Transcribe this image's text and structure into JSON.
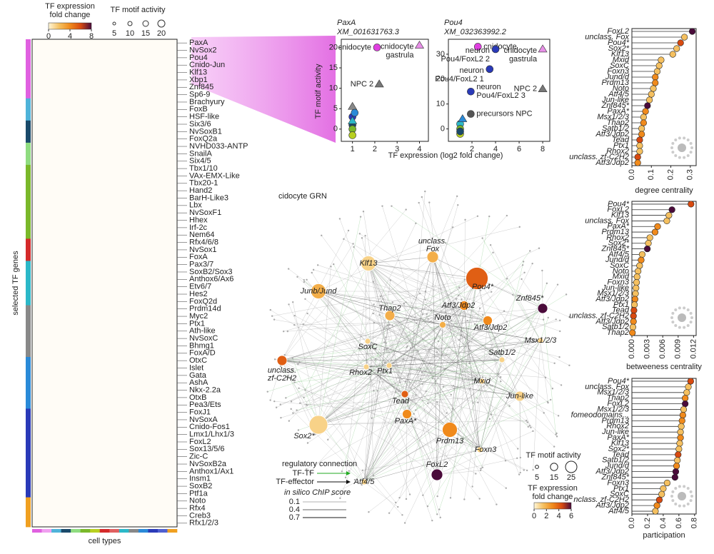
{
  "chart_data": [
    {
      "type": "heatmap",
      "ylabel": "selected TF genes",
      "xlabel": "cell types",
      "colorbar": {
        "title_lines": [
          "TF expression",
          "fold change"
        ],
        "lim": [
          0,
          8
        ],
        "ticks": [
          0,
          4,
          8
        ]
      },
      "size_legend": {
        "title": "TF motif activity",
        "ticks": [
          5,
          10,
          15,
          20
        ]
      },
      "colormap": [
        "#fff6d8",
        "#f5c060",
        "#f08a1c",
        "#d84a10",
        "#4a0b3a"
      ],
      "groups": [
        {
          "color": "#e060e0",
          "genes": [
            "PaxA",
            "NvSox2",
            "Pou4",
            "Cnido-Jun",
            "Klf13",
            "Xbp1",
            "Znf845",
            "Sp6-9"
          ]
        },
        {
          "color": "#4fb3d9",
          "genes": [
            "Brachyury",
            "FoxB",
            "HSF-like"
          ]
        },
        {
          "color": "#1a4a6a",
          "genes": [
            "Six3/6",
            "NvSoxB1",
            "FoxQ2a"
          ]
        },
        {
          "color": "#8fdc80",
          "genes": [
            "NVHD033-ANTP",
            "SnailA",
            "Six4/5"
          ]
        },
        {
          "color": "#7ab82a",
          "genes": [
            "Tbx1/10",
            "VAx-EMX-Like",
            "Tbx20-1",
            "Hand2",
            "BarH-Like3",
            "Lbx",
            "NvSoxF1",
            "Hhex",
            "Irf-2c",
            "Nem64"
          ]
        },
        {
          "color": "#d42a2a",
          "genes": [
            "Rfx4/6/8",
            "NvSox1",
            "FoxA"
          ]
        },
        {
          "color": "#2bb8c8",
          "genes": [
            "Pax3/7",
            "SoxB2/Sox3",
            "Anthox6/Ax6",
            "Etv6/7",
            "Hes2",
            "FoxQ2d"
          ]
        },
        {
          "color": "#888888",
          "genes": [
            "Prdm14d",
            "Myc2",
            "Ptx1",
            "Ath-like",
            "NvSoxC",
            "Bhmg1",
            "FoxA/D"
          ]
        },
        {
          "color": "#2a8ad8",
          "genes": [
            "OtxC",
            "Islet",
            "Gata",
            "AshA",
            "Nkx-2.2a",
            "OtxB",
            "Pea3/Ets"
          ]
        },
        {
          "color": "#2a3ab8",
          "genes": [
            "FoxJ1",
            "NvSoxA",
            "Cnido-Fos1",
            "Lmx1/Lhx1/3",
            "FoxL2",
            "Sox13/5/6",
            "Zic-C",
            "NvSoxB2a",
            "Anthox1/Ax1",
            "Insm1",
            "SoxB2",
            "Ptf1a"
          ]
        },
        {
          "color": "#f0a020",
          "genes": [
            "Noto",
            "Rfx4",
            "Creb3",
            "Rfx1/2/3"
          ]
        }
      ],
      "cell_type_colors": [
        "#e060e0",
        "#f0a0f0",
        "#4fb3d9",
        "#1a4a6a",
        "#8fdc80",
        "#7ab82a",
        "#b8d020",
        "#d42a2a",
        "#e06060",
        "#2bb8c8",
        "#888888",
        "#2a8ad8",
        "#2a3ab8",
        "#5060d0",
        "#f0a020"
      ]
    },
    {
      "type": "scatter",
      "title": "PaxA",
      "subtitle": "XM_001631763.3",
      "ylabel": "TF motif activity",
      "xlabel": "TF expression (log2 fold change)",
      "x": [
        1,
        1,
        1,
        1,
        1,
        1,
        1.1,
        2.1,
        4,
        2.2
      ],
      "values": [
        5.5,
        3,
        1,
        0,
        -1.5,
        2,
        4,
        20,
        20.5,
        11
      ],
      "labels": [
        null,
        null,
        null,
        null,
        null,
        null,
        null,
        [
          "cnidocyte"
        ],
        [
          "cnidocyte",
          "gastrula"
        ],
        [
          "NPC 2"
        ]
      ],
      "colors": [
        "#888888",
        "#2a3ab8",
        "#1a4a6a",
        "#7ab82a",
        "#b8d020",
        "#2bb8c8",
        "#2a8ad8",
        "#e040e0",
        "#e890e8",
        "#777777"
      ],
      "markers": [
        "triangle",
        "circle",
        "circle",
        "circle",
        "circle",
        "triangle",
        "circle",
        "circle",
        "triangle",
        "triangle"
      ],
      "xlim": [
        0.5,
        4.4
      ],
      "ylim": [
        -3,
        22
      ],
      "xticks": [
        1,
        2,
        3,
        4
      ],
      "yticks": [
        0,
        5,
        10,
        15,
        20
      ]
    },
    {
      "type": "scatter",
      "title": "Pou4",
      "subtitle": "XM_032363992.2",
      "x": [
        1,
        1,
        1,
        1.2,
        1,
        2.5,
        8,
        4,
        3.5,
        1.9,
        8,
        1.9
      ],
      "values": [
        2,
        0,
        -2,
        4,
        -1,
        33,
        32,
        32,
        24,
        15,
        16,
        6
      ],
      "labels": [
        null,
        null,
        null,
        null,
        null,
        [
          "cnidocyte"
        ],
        [
          "cnidocyte",
          "gastrula"
        ],
        [
          "neuron",
          "Pou4/FoxL2 2"
        ],
        [
          "neuron",
          "Pou4/FoxL2 1"
        ],
        [
          "neuron",
          "Pou4/FoxL2 3"
        ],
        [
          "NPC 2"
        ],
        [
          "precursors NPC"
        ]
      ],
      "colors": [
        "#2bb8c8",
        "#7ab82a",
        "#b8d020",
        "#2a8ad8",
        "#1a4a6a",
        "#e040e0",
        "#e890e8",
        "#2a3ab8",
        "#2a3ab8",
        "#2a3ab8",
        "#777777",
        "#555555"
      ],
      "markers": [
        "circle",
        "circle",
        "circle",
        "triangle",
        "circle",
        "circle",
        "triangle",
        "circle",
        "circle",
        "circle",
        "triangle",
        "circle"
      ],
      "xlim": [
        0,
        8.6
      ],
      "ylim": [
        -5,
        36
      ],
      "xticks": [
        2,
        4,
        6,
        8
      ],
      "yticks": [
        0,
        10,
        20,
        30
      ]
    },
    {
      "type": "network",
      "title": "cidocyte GRN",
      "nodes": [
        {
          "label": [
            "Pou4*"
          ],
          "activity": 25,
          "expression": 4
        },
        {
          "label": [
            "unclass.",
            "Fox"
          ],
          "activity": 10,
          "expression": 2
        },
        {
          "label": [
            "Klf13"
          ],
          "activity": 15,
          "expression": 1
        },
        {
          "label": [
            "Junb/Jund"
          ],
          "activity": 15,
          "expression": 2
        },
        {
          "label": [
            "Atf3/Jdp2"
          ],
          "activity": 7,
          "expression": 3
        },
        {
          "label": [
            "Atf3/Jdp2"
          ],
          "activity": 7,
          "expression": 3
        },
        {
          "label": [
            "Znf845*"
          ],
          "activity": 8,
          "expression": 6
        },
        {
          "label": [
            "Thap2"
          ],
          "activity": 8,
          "expression": 2
        },
        {
          "label": [
            "Noto"
          ],
          "activity": 3,
          "expression": 2
        },
        {
          "label": [
            "SoxC"
          ],
          "activity": 2,
          "expression": 1
        },
        {
          "label": [
            "Msx1/2/3"
          ],
          "activity": 2,
          "expression": 1
        },
        {
          "label": [
            "unclass.",
            "zf-C2H2"
          ],
          "activity": 8,
          "expression": 4
        },
        {
          "label": [
            "Rhox2"
          ],
          "activity": 2,
          "expression": 1
        },
        {
          "label": [
            "Ptx1"
          ],
          "activity": 2,
          "expression": 1
        },
        {
          "label": [
            "Satb1/2"
          ],
          "activity": 2,
          "expression": 1
        },
        {
          "label": [
            "Mxid"
          ],
          "activity": 2,
          "expression": 1
        },
        {
          "label": [
            "Tead"
          ],
          "activity": 4,
          "expression": 4
        },
        {
          "label": [
            "Jun-like"
          ],
          "activity": 8,
          "expression": 1
        },
        {
          "label": [
            "PaxA*"
          ],
          "activity": 7,
          "expression": 3
        },
        {
          "label": [
            "Sox2*"
          ],
          "activity": 20,
          "expression": 1
        },
        {
          "label": [
            "Prdm13"
          ],
          "activity": 15,
          "expression": 3
        },
        {
          "label": [
            "Foxn3"
          ],
          "activity": 2,
          "expression": 1
        },
        {
          "label": [
            "FoxL2"
          ],
          "activity": 10,
          "expression": 6
        },
        {
          "label": [
            "Atf4/5"
          ],
          "activity": 2,
          "expression": 1
        }
      ],
      "colormap": [
        "#fff6d8",
        "#f5c060",
        "#f08a1c",
        "#d84a10",
        "#4a0b3a"
      ],
      "size_legend": {
        "title": "TF motif activity",
        "ticks": [
          5,
          15,
          25
        ]
      },
      "colorbar": {
        "title_lines": [
          "TF expression",
          "fold change"
        ],
        "lim": [
          0,
          6
        ],
        "ticks": [
          0,
          2,
          4,
          6
        ]
      },
      "connection_title": "regulatory connection",
      "edge_types": [
        {
          "name": "TF-TF",
          "color": "#22aa22"
        },
        {
          "name": "TF-effector",
          "color": "#111111"
        }
      ],
      "chip_title": "in silico ChIP score",
      "chip_ticks": [
        0.1,
        0.4,
        0.7
      ]
    },
    {
      "type": "lollipop",
      "xlabel": "degree centrality",
      "categories": [
        "FoxL2",
        "unclass. Fox",
        "Pou4*",
        "Sox2*",
        "Klf13",
        "Mxid",
        "SoxC",
        "Foxn3",
        "Jund/d",
        "Prdm13",
        "Noto",
        "Atf4/5",
        "Jun-like",
        "Znf845*",
        "PaxA*",
        "Msx1/2/3",
        "Thap2",
        "Satb1/2",
        "Atf3/Jdp2",
        "Tead",
        "Ptx1",
        "Rhox2",
        "unclass. zf-C2H2",
        "Atf3/Jdp2"
      ],
      "values": [
        0.31,
        0.27,
        0.25,
        0.23,
        0.21,
        0.15,
        0.14,
        0.13,
        0.12,
        0.12,
        0.11,
        0.1,
        0.09,
        0.08,
        0.07,
        0.06,
        0.06,
        0.05,
        0.05,
        0.04,
        0.04,
        0.04,
        0.03,
        0.03
      ],
      "colors": [
        "#4a0b3a",
        "#f5c060",
        "#d84a10",
        "#f5c060",
        "#f5c060",
        "#f5c060",
        "#f5c060",
        "#f5c060",
        "#f08a1c",
        "#f08a1c",
        "#f5c060",
        "#f5c060",
        "#f5c060",
        "#4a0b3a",
        "#f08a1c",
        "#f5c060",
        "#f08a1c",
        "#f5c060",
        "#f08a1c",
        "#d84a10",
        "#f5c060",
        "#f5c060",
        "#d84a10",
        "#f08a1c"
      ],
      "xlim": [
        0,
        0.33
      ],
      "xticks": [
        {
          "value": 0,
          "label": "0.0"
        },
        0.1,
        0.2,
        0.3
      ]
    },
    {
      "type": "lollipop",
      "xlabel": "betweeness centrality",
      "categories": [
        "Pou4*",
        "FoxL2",
        "Klf13",
        "unclass. Fox",
        "PaxA*",
        "Prdm13",
        "Rhox2",
        "Sox2*",
        "Znf845*",
        "Atf4/5",
        "Jund/d",
        "SoxC",
        "Noto",
        "Mxid",
        "Foxn3",
        "Jun-like",
        "Msx1/2/3",
        "Atf3/Jdp2",
        "Ptx1",
        "Tead",
        "unclass. zf-C2H2",
        "Atf3/Jdp2",
        "Satb1/2",
        "Thap2"
      ],
      "values": [
        0.0115,
        0.0078,
        0.0072,
        0.0068,
        0.005,
        0.0045,
        0.0035,
        0.0032,
        0.003,
        0.002,
        0.0018,
        0.0015,
        0.0012,
        0.001,
        0.0009,
        0.0008,
        0.0007,
        0.0006,
        0.0005,
        0.0004,
        0.0003,
        0.0003,
        0.0002,
        0.0001
      ],
      "colors": [
        "#d84a10",
        "#4a0b3a",
        "#f5c060",
        "#f5c060",
        "#f08a1c",
        "#f08a1c",
        "#f5c060",
        "#f5c060",
        "#4a0b3a",
        "#f5c060",
        "#f08a1c",
        "#f5c060",
        "#f5c060",
        "#f5c060",
        "#f5c060",
        "#f5c060",
        "#f5c060",
        "#f08a1c",
        "#f5c060",
        "#d84a10",
        "#d84a10",
        "#f08a1c",
        "#f5c060",
        "#f08a1c"
      ],
      "xlim": [
        0,
        0.0125
      ],
      "xticks": [
        {
          "value": 0,
          "label": "0.000"
        },
        0.003,
        0.006,
        0.009,
        0.012
      ]
    },
    {
      "type": "lollipop",
      "xlabel": "participation",
      "categories": [
        "Pou4*",
        "unclass. Fox",
        "Msx1/2/3",
        "Thap2",
        "FoxL2",
        "Msx1/2/3",
        "fomeodomains...",
        "Prdm13",
        "Rhox2",
        "Jun-like",
        "PaxA*",
        "Klf13",
        "Sox2*",
        "Tead",
        "Satb1/2",
        "Jund/d",
        "Atf3/Jdp2",
        "Znf845*",
        "Foxn3",
        "Ptx1",
        "SoxC",
        "nclass. zf-C2H2",
        "Atf3/Jdp2",
        "Atf4/5"
      ],
      "values": [
        0.75,
        0.72,
        0.7,
        0.68,
        0.68,
        0.66,
        0.65,
        0.64,
        0.63,
        0.62,
        0.62,
        0.61,
        0.6,
        0.59,
        0.58,
        0.57,
        0.56,
        0.55,
        0.45,
        0.4,
        0.38,
        0.35,
        0.32,
        0.3
      ],
      "colors": [
        "#d84a10",
        "#f5c060",
        "#f5c060",
        "#f08a1c",
        "#4a0b3a",
        "#f5c060",
        "#f08a1c",
        "#f08a1c",
        "#f5c060",
        "#f5c060",
        "#f08a1c",
        "#f5c060",
        "#f5c060",
        "#d84a10",
        "#f5c060",
        "#f08a1c",
        "#4a0b3a",
        "#4a0b3a",
        "#f5c060",
        "#f5c060",
        "#f5c060",
        "#d84a10",
        "#f08a1c",
        "#f5c060"
      ],
      "xlim": [
        0,
        0.82
      ],
      "xticks": [
        {
          "value": 0,
          "label": "0.0"
        },
        0.2,
        0.4,
        0.6,
        0.8
      ]
    }
  ]
}
